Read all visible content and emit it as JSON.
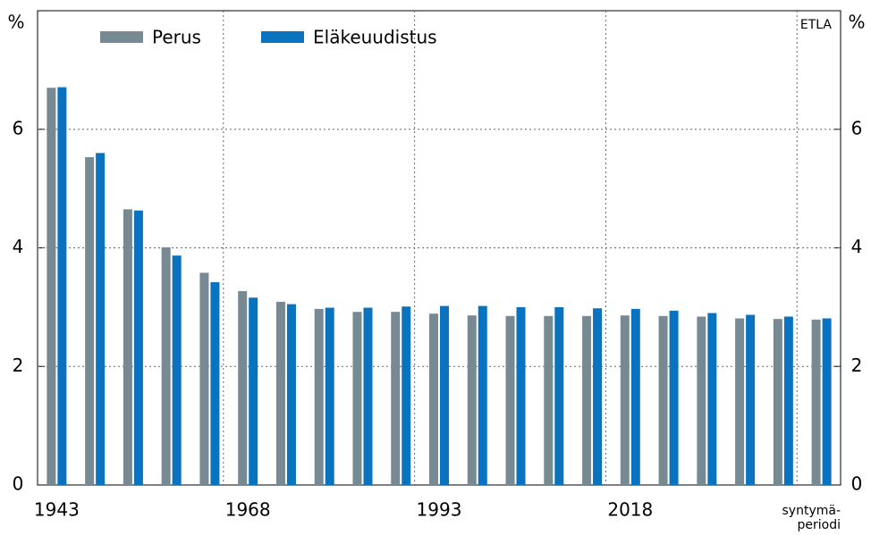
{
  "chart_data": {
    "type": "bar",
    "y_unit": "%",
    "source": "ETLA",
    "x_label": "syntymä-\nperiodi",
    "categories": [
      "1943",
      null,
      null,
      null,
      null,
      "1968",
      null,
      null,
      null,
      null,
      "1993",
      null,
      null,
      null,
      null,
      "2018",
      null,
      null,
      null,
      null,
      null
    ],
    "series": [
      {
        "name": "Perus",
        "color": "#778a93",
        "values": [
          6.7,
          5.53,
          4.65,
          4.01,
          3.58,
          3.27,
          3.09,
          2.97,
          2.92,
          2.92,
          2.89,
          2.86,
          2.85,
          2.85,
          2.85,
          2.86,
          2.85,
          2.84,
          2.81,
          2.8,
          2.79
        ]
      },
      {
        "name": "Eläkeuudistus",
        "color": "#0a73c0",
        "values": [
          6.71,
          5.6,
          4.63,
          3.87,
          3.42,
          3.16,
          3.05,
          2.99,
          2.99,
          3.01,
          3.02,
          3.02,
          3.0,
          3.0,
          2.98,
          2.97,
          2.94,
          2.9,
          2.87,
          2.84,
          2.81
        ]
      }
    ],
    "ylim": [
      0,
      8
    ],
    "yticks": [
      0,
      2,
      4,
      6
    ],
    "grid": true
  }
}
